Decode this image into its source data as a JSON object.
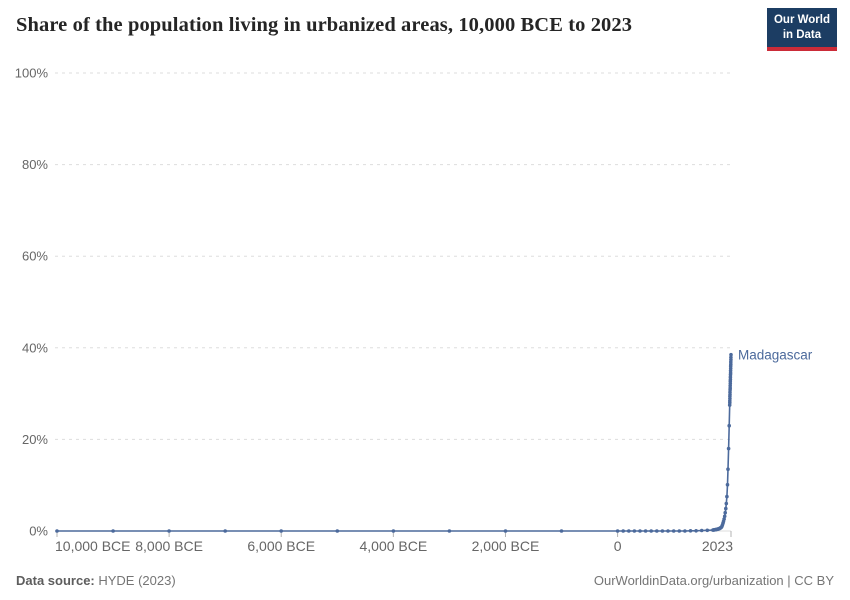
{
  "header": {
    "title": "Share of the population living in urbanized areas, 10,000 BCE to 2023",
    "logo": {
      "line1": "Our World",
      "line2": "in Data"
    }
  },
  "footer": {
    "source_label": "Data source:",
    "source_value": " HYDE (2023)",
    "right_text": "OurWorldinData.org/urbanization | CC BY"
  },
  "colors": {
    "line": "#4C6A9C",
    "grid": "#dddddd",
    "axis": "#dcdcdc",
    "tick": "#b3b3b3",
    "tick_text": "#666666",
    "logo_bg": "#1c3d63",
    "logo_red": "#cb2b38"
  },
  "chart_data": {
    "type": "line",
    "title": "Share of the population living in urbanized areas, 10,000 BCE to 2023",
    "x_axis": {
      "lim": [
        -10000,
        2023
      ],
      "ticks": [
        {
          "value": -10000,
          "label": "10,000 BCE"
        },
        {
          "value": -8000,
          "label": "8,000 BCE"
        },
        {
          "value": -6000,
          "label": "6,000 BCE"
        },
        {
          "value": -4000,
          "label": "4,000 BCE"
        },
        {
          "value": -2000,
          "label": "2,000 BCE"
        },
        {
          "value": 0,
          "label": "0"
        },
        {
          "value": 2023,
          "label": "2023"
        }
      ]
    },
    "y_axis": {
      "lim": [
        0,
        100
      ],
      "grid": "dashed-horizontal",
      "ticks": [
        {
          "value": 0,
          "label": "0%"
        },
        {
          "value": 20,
          "label": "20%"
        },
        {
          "value": 40,
          "label": "40%"
        },
        {
          "value": 60,
          "label": "60%"
        },
        {
          "value": 80,
          "label": "80%"
        },
        {
          "value": 100,
          "label": "100%"
        }
      ]
    },
    "series": [
      {
        "name": "Madagascar",
        "color": "#4C6A9C",
        "end_label": "Madagascar",
        "points": [
          [
            -10000,
            0
          ],
          [
            -9000,
            0
          ],
          [
            -8000,
            0
          ],
          [
            -7000,
            0
          ],
          [
            -6000,
            0
          ],
          [
            -5000,
            0
          ],
          [
            -4000,
            0
          ],
          [
            -3000,
            0
          ],
          [
            -2000,
            0
          ],
          [
            -1000,
            0
          ],
          [
            0,
            0
          ],
          [
            100,
            0
          ],
          [
            200,
            0
          ],
          [
            300,
            0
          ],
          [
            400,
            0
          ],
          [
            500,
            0
          ],
          [
            600,
            0
          ],
          [
            700,
            0
          ],
          [
            800,
            0
          ],
          [
            900,
            0
          ],
          [
            1000,
            0
          ],
          [
            1100,
            0
          ],
          [
            1200,
            0
          ],
          [
            1300,
            0.05
          ],
          [
            1400,
            0.05
          ],
          [
            1500,
            0.1
          ],
          [
            1600,
            0.15
          ],
          [
            1700,
            0.2
          ],
          [
            1710,
            0.22
          ],
          [
            1720,
            0.24
          ],
          [
            1730,
            0.26
          ],
          [
            1740,
            0.28
          ],
          [
            1750,
            0.3
          ],
          [
            1760,
            0.33
          ],
          [
            1770,
            0.36
          ],
          [
            1780,
            0.39
          ],
          [
            1790,
            0.42
          ],
          [
            1800,
            0.45
          ],
          [
            1810,
            0.5
          ],
          [
            1820,
            0.56
          ],
          [
            1830,
            0.63
          ],
          [
            1840,
            0.71
          ],
          [
            1850,
            0.8
          ],
          [
            1860,
            1
          ],
          [
            1870,
            1.3
          ],
          [
            1880,
            1.7
          ],
          [
            1890,
            2.1
          ],
          [
            1900,
            2.6
          ],
          [
            1910,
            3.2
          ],
          [
            1920,
            4
          ],
          [
            1930,
            4.9
          ],
          [
            1940,
            6
          ],
          [
            1950,
            7.5
          ],
          [
            1960,
            10.1
          ],
          [
            1970,
            13.5
          ],
          [
            1980,
            18
          ],
          [
            1990,
            23
          ],
          [
            2000,
            27.5
          ],
          [
            2001,
            28
          ],
          [
            2002,
            28.4
          ],
          [
            2003,
            28.9
          ],
          [
            2004,
            29.4
          ],
          [
            2005,
            29.8
          ],
          [
            2006,
            30.3
          ],
          [
            2007,
            30.8
          ],
          [
            2008,
            31.2
          ],
          [
            2009,
            31.7
          ],
          [
            2010,
            32.2
          ],
          [
            2011,
            32.7
          ],
          [
            2012,
            33.1
          ],
          [
            2013,
            33.6
          ],
          [
            2014,
            34.1
          ],
          [
            2015,
            34.5
          ],
          [
            2016,
            35
          ],
          [
            2017,
            35.5
          ],
          [
            2018,
            36
          ],
          [
            2019,
            36.4
          ],
          [
            2020,
            36.9
          ],
          [
            2021,
            37.4
          ],
          [
            2022,
            37.9
          ],
          [
            2023,
            38.5
          ]
        ]
      }
    ]
  }
}
